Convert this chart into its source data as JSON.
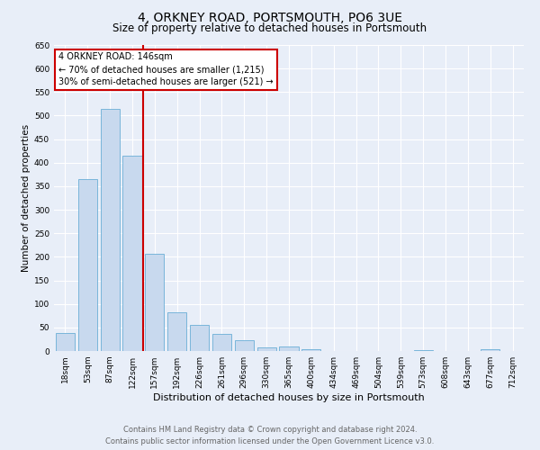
{
  "title": "4, ORKNEY ROAD, PORTSMOUTH, PO6 3UE",
  "subtitle": "Size of property relative to detached houses in Portsmouth",
  "xlabel": "Distribution of detached houses by size in Portsmouth",
  "ylabel": "Number of detached properties",
  "bar_labels": [
    "18sqm",
    "53sqm",
    "87sqm",
    "122sqm",
    "157sqm",
    "192sqm",
    "226sqm",
    "261sqm",
    "296sqm",
    "330sqm",
    "365sqm",
    "400sqm",
    "434sqm",
    "469sqm",
    "504sqm",
    "539sqm",
    "573sqm",
    "608sqm",
    "643sqm",
    "677sqm",
    "712sqm"
  ],
  "bar_values": [
    38,
    365,
    515,
    415,
    207,
    83,
    55,
    37,
    23,
    8,
    10,
    3,
    0,
    0,
    0,
    0,
    2,
    0,
    0,
    3,
    0
  ],
  "bar_color": "#c8d9ee",
  "bar_edge_color": "#6aaed6",
  "vline_x": 3.5,
  "vline_color": "#cc0000",
  "ylim": [
    0,
    650
  ],
  "yticks": [
    0,
    50,
    100,
    150,
    200,
    250,
    300,
    350,
    400,
    450,
    500,
    550,
    600,
    650
  ],
  "annotation_title": "4 ORKNEY ROAD: 146sqm",
  "annotation_line1": "← 70% of detached houses are smaller (1,215)",
  "annotation_line2": "30% of semi-detached houses are larger (521) →",
  "annotation_box_color": "#ffffff",
  "annotation_box_edge": "#cc0000",
  "footer_line1": "Contains HM Land Registry data © Crown copyright and database right 2024.",
  "footer_line2": "Contains public sector information licensed under the Open Government Licence v3.0.",
  "bg_color": "#e8eef8",
  "plot_bg_color": "#e8eef8",
  "title_fontsize": 10,
  "subtitle_fontsize": 8.5,
  "xlabel_fontsize": 8,
  "ylabel_fontsize": 7.5,
  "tick_fontsize": 6.5,
  "annotation_fontsize": 7,
  "footer_fontsize": 6
}
